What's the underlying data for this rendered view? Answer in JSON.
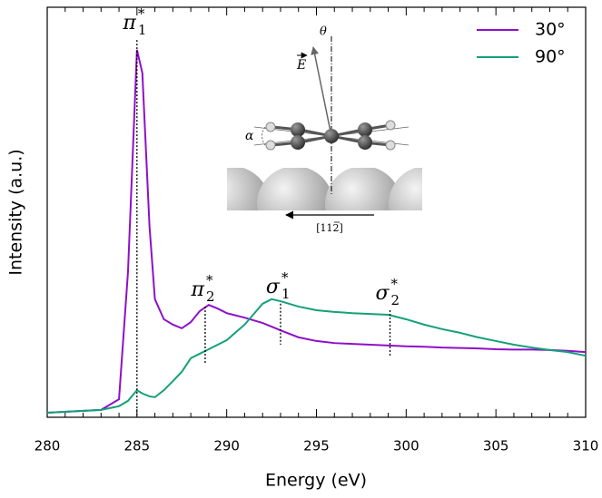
{
  "chart_data": {
    "type": "line",
    "xlabel": "Energy (eV)",
    "ylabel": "Intensity (a.u.)",
    "xlim": [
      280,
      310
    ],
    "ylim": [
      0,
      1
    ],
    "xticks": [
      280,
      285,
      290,
      295,
      300,
      305,
      310
    ],
    "xminorticks": [
      281,
      282,
      283,
      284,
      286,
      287,
      288,
      289,
      291,
      292,
      293,
      294,
      296,
      297,
      298,
      299,
      301,
      302,
      303,
      304,
      306,
      307,
      308,
      309
    ],
    "legend": "upper right",
    "x": [
      280,
      283,
      284,
      284.5,
      285,
      285.3,
      285.7,
      286,
      286.5,
      287,
      287.5,
      288,
      288.5,
      289,
      289.5,
      290,
      291,
      292,
      292.5,
      293,
      294,
      295,
      296,
      297,
      298,
      299,
      300,
      301,
      302,
      303,
      304,
      305,
      306,
      307,
      308,
      309,
      310
    ],
    "series": [
      {
        "name": "30°",
        "color": "#8e10c9",
        "values": [
          0.011,
          0.018,
          0.044,
          0.354,
          0.896,
          0.84,
          0.465,
          0.288,
          0.239,
          0.226,
          0.217,
          0.232,
          0.259,
          0.274,
          0.265,
          0.254,
          0.243,
          0.23,
          0.221,
          0.212,
          0.195,
          0.186,
          0.181,
          0.179,
          0.177,
          0.175,
          0.173,
          0.172,
          0.17,
          0.169,
          0.168,
          0.166,
          0.165,
          0.165,
          0.164,
          0.162,
          0.159
        ]
      },
      {
        "name": "90°",
        "color": "#14a07a",
        "values": [
          0.011,
          0.018,
          0.027,
          0.04,
          0.066,
          0.058,
          0.051,
          0.049,
          0.066,
          0.088,
          0.111,
          0.144,
          0.155,
          0.166,
          0.177,
          0.188,
          0.226,
          0.277,
          0.288,
          0.283,
          0.27,
          0.261,
          0.257,
          0.254,
          0.252,
          0.25,
          0.239,
          0.226,
          0.215,
          0.206,
          0.195,
          0.186,
          0.177,
          0.17,
          0.164,
          0.159,
          0.15
        ]
      }
    ],
    "annotations": [
      {
        "symbol": "π",
        "sub": "1",
        "sup": "*",
        "x": 285,
        "y1": 0.92,
        "y2": 0
      },
      {
        "symbol": "π",
        "sub": "2",
        "sup": "*",
        "x": 288.8,
        "y1": 0.27,
        "y2": 0.13
      },
      {
        "symbol": "σ",
        "sub": "1",
        "sup": "*",
        "x": 293,
        "y1": 0.277,
        "y2": 0.177
      },
      {
        "symbol": "σ",
        "sub": "2",
        "sup": "*",
        "x": 299.1,
        "y1": 0.261,
        "y2": 0.148
      }
    ],
    "inset": {
      "theta": "θ",
      "field": "E",
      "alpha": "α",
      "direction": "[112]"
    }
  }
}
